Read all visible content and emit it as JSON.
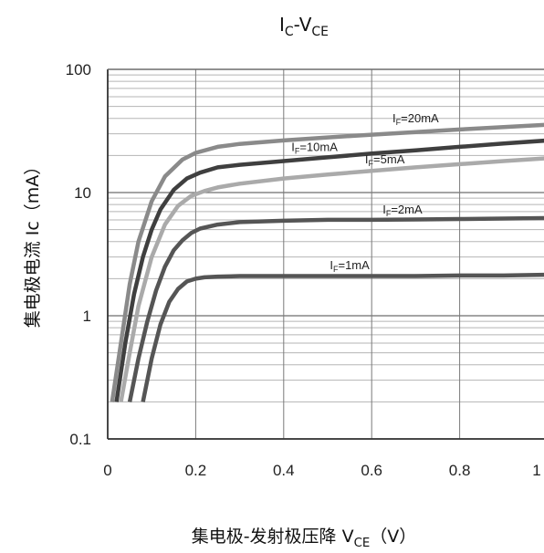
{
  "chart_data": {
    "type": "line",
    "title": {
      "main": "I",
      "sub1": "C",
      "mid": "-V",
      "sub2": "CE"
    },
    "xlabel": {
      "prefix": "集电极-发射极压降 V",
      "sub": "CE",
      "suffix": "（V）"
    },
    "ylabel": "集电极电流 Ic（mA）",
    "xlim": [
      0,
      1
    ],
    "ylim": [
      0.1,
      100
    ],
    "yscale": "log",
    "grid": true,
    "x_ticks": [
      "0",
      "0.2",
      "0.4",
      "0.6",
      "0.8",
      "1"
    ],
    "y_ticks": [
      "0.1",
      "1",
      "10",
      "100"
    ],
    "series": [
      {
        "name": "I_F=20mA",
        "label_parts": [
          "I",
          "F",
          "=20mA"
        ],
        "color": "#8a8a8a",
        "x": [
          0.01,
          0.03,
          0.05,
          0.07,
          0.1,
          0.13,
          0.17,
          0.2,
          0.25,
          0.3,
          0.4,
          0.5,
          0.6,
          0.7,
          0.8,
          0.9,
          1.0
        ],
        "values": [
          0.2,
          0.6,
          1.8,
          4.0,
          8.5,
          13.5,
          18.5,
          21,
          23.5,
          24.8,
          26.5,
          28,
          29.5,
          31,
          32.5,
          34,
          35.5
        ]
      },
      {
        "name": "I_F=10mA",
        "label_parts": [
          "I",
          "F",
          "=10mA"
        ],
        "color": "#3f3f3f",
        "x": [
          0.02,
          0.04,
          0.06,
          0.08,
          0.1,
          0.12,
          0.15,
          0.18,
          0.21,
          0.25,
          0.3,
          0.4,
          0.5,
          0.6,
          0.7,
          0.8,
          0.9,
          1.0
        ],
        "values": [
          0.2,
          0.6,
          1.5,
          3.0,
          5.0,
          7.3,
          10.5,
          13,
          14.5,
          16,
          16.8,
          18,
          19.3,
          20.7,
          22,
          23.5,
          25,
          26.5
        ]
      },
      {
        "name": "I_F=5mA",
        "label_parts": [
          "I",
          "F",
          "=5mA"
        ],
        "color": "#aaaaaa",
        "x": [
          0.03,
          0.05,
          0.07,
          0.1,
          0.13,
          0.16,
          0.19,
          0.22,
          0.25,
          0.3,
          0.4,
          0.5,
          0.6,
          0.7,
          0.8,
          0.9,
          1.0
        ],
        "values": [
          0.2,
          0.5,
          1.2,
          3.0,
          5.5,
          7.8,
          9.4,
          10.3,
          11,
          11.8,
          13,
          14,
          15,
          16,
          17,
          18,
          19
        ]
      },
      {
        "name": "I_F=2mA",
        "label_parts": [
          "I",
          "F",
          "=2mA"
        ],
        "color": "#555555",
        "x": [
          0.05,
          0.07,
          0.09,
          0.11,
          0.13,
          0.15,
          0.17,
          0.19,
          0.21,
          0.25,
          0.3,
          0.4,
          0.5,
          0.6,
          0.7,
          0.8,
          0.9,
          1.0
        ],
        "values": [
          0.2,
          0.45,
          0.9,
          1.6,
          2.5,
          3.4,
          4.1,
          4.7,
          5.1,
          5.5,
          5.75,
          5.9,
          6.0,
          6.0,
          6.05,
          6.1,
          6.15,
          6.2
        ]
      },
      {
        "name": "I_F=1mA",
        "label_parts": [
          "I",
          "F",
          "=1mA"
        ],
        "color": "#555555",
        "x": [
          0.08,
          0.1,
          0.12,
          0.14,
          0.16,
          0.18,
          0.2,
          0.22,
          0.25,
          0.3,
          0.4,
          0.5,
          0.6,
          0.7,
          0.8,
          0.9,
          1.0
        ],
        "values": [
          0.2,
          0.45,
          0.85,
          1.3,
          1.65,
          1.9,
          2.0,
          2.05,
          2.08,
          2.1,
          2.1,
          2.1,
          2.1,
          2.1,
          2.12,
          2.12,
          2.15
        ]
      }
    ]
  }
}
